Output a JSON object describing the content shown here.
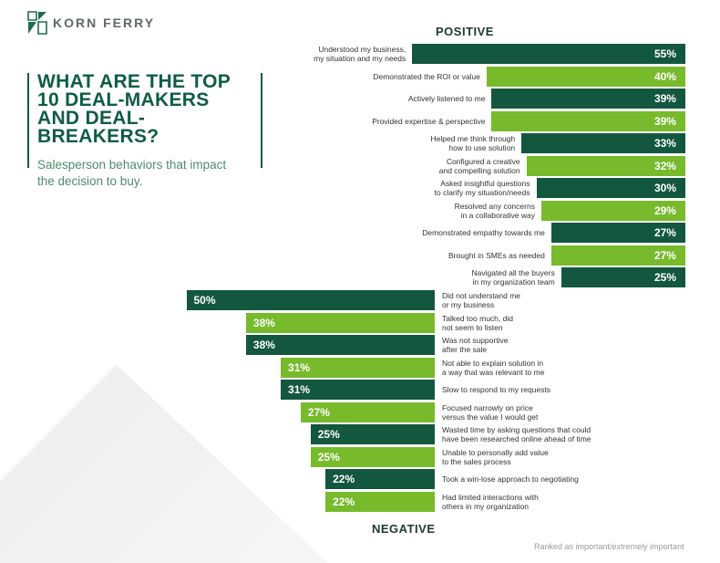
{
  "brand": {
    "name": "KORN FERRY"
  },
  "title": {
    "lines": [
      "WHAT ARE THE TOP",
      "10 DEAL-MAKERS",
      "AND DEAL-BREAKERS?"
    ]
  },
  "subtitle": {
    "lines": [
      "Salesperson behaviors that impact",
      "the decision to buy."
    ]
  },
  "headings": {
    "positive": "POSITIVE",
    "negative": "NEGATIVE"
  },
  "footnote": "Ranked as important/extremely important",
  "colors": {
    "dark": "#13573f",
    "light": "#77ba2c"
  },
  "chart_data": {
    "type": "bar",
    "title": "What are the top 10 deal-makers and deal-breakers?",
    "unit": "%",
    "series": [
      {
        "name": "POSITIVE",
        "categories": [
          [
            "Understood my business,",
            "my situation and my needs"
          ],
          [
            "Demonstrated the ROI or value"
          ],
          [
            "Actively listened to me"
          ],
          [
            "Provided expertise & perspective"
          ],
          [
            "Helped me think through",
            "how to use solution"
          ],
          [
            "Configured a creative",
            "and compelling solution"
          ],
          [
            "Asked insightful questions",
            "to clarify my situation/needs"
          ],
          [
            "Resolved any concerns",
            "in a collaborative way"
          ],
          [
            "Demonstrated empathy towards me"
          ],
          [
            "Brought in SMEs as needed"
          ],
          [
            "Navigated all the buyers",
            "in my organization team"
          ]
        ],
        "values": [
          55,
          40,
          39,
          39,
          33,
          32,
          30,
          29,
          27,
          27,
          25
        ],
        "value_labels": [
          "55%",
          "40%",
          "39%",
          "39%",
          "33%",
          "32%",
          "30%",
          "29%",
          "27%",
          "27%",
          "25%"
        ]
      },
      {
        "name": "NEGATIVE",
        "categories": [
          [
            "Did not understand me",
            "or my business"
          ],
          [
            "Talked too much, did",
            "not seem to listen"
          ],
          [
            "Was not supportive",
            "after the sale"
          ],
          [
            "Not able to explain solution in",
            "a way that was relevant to me"
          ],
          [
            "Slow to respond to my requests"
          ],
          [
            "Focused narrowly on price",
            "versus the value I would get"
          ],
          [
            "Wasted time by asking questions that could",
            "have been researched online ahead of time"
          ],
          [
            "Unable to personally add value",
            "to the sales process"
          ],
          [
            "Took a win-lose approach to negotiating"
          ],
          [
            "Had limited interactions with",
            "others in my organization"
          ]
        ],
        "values": [
          50,
          38,
          38,
          31,
          31,
          27,
          25,
          25,
          22,
          22
        ],
        "value_labels": [
          "50%",
          "38%",
          "38%",
          "31%",
          "31%",
          "27%",
          "25%",
          "25%",
          "22%",
          "22%"
        ]
      }
    ]
  }
}
